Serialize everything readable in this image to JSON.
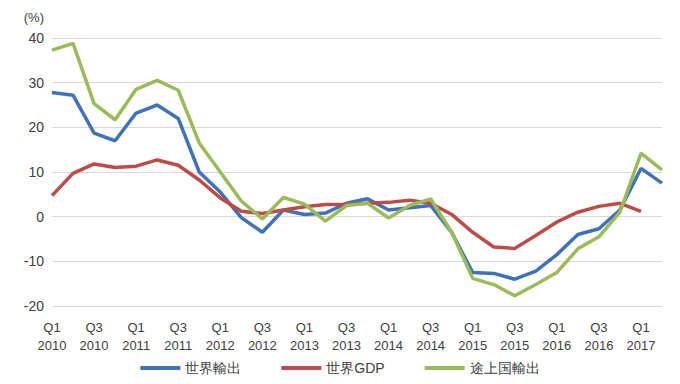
{
  "chart_data": {
    "type": "line",
    "y_label": "(%)",
    "categories": [
      "Q1\n2010",
      null,
      "Q3\n2010",
      null,
      "Q1\n2011",
      null,
      "Q3\n2011",
      null,
      "Q1\n2012",
      null,
      "Q3\n2012",
      null,
      "Q1\n2013",
      null,
      "Q3\n2013",
      null,
      "Q1\n2014",
      null,
      "Q3\n2014",
      null,
      "Q1\n2015",
      null,
      "Q3\n2015",
      null,
      "Q1\n2016",
      null,
      "Q3\n2016",
      null,
      "Q1\n2017",
      null
    ],
    "series": [
      {
        "name": "世界輸出",
        "color": "#3f72b8",
        "values": [
          27.8,
          27.2,
          18.7,
          17.0,
          23.2,
          25.0,
          22.0,
          10.0,
          5.5,
          -0.2,
          -3.5,
          1.5,
          0.5,
          0.8,
          3.0,
          4.0,
          1.5,
          2.0,
          2.5,
          -3.5,
          -12.5,
          -12.7,
          -14.0,
          -12.2,
          -8.5,
          -4.0,
          -2.7,
          1.5,
          10.8,
          7.5
        ]
      },
      {
        "name": "世界GDP",
        "color": "#be4b48",
        "values": [
          4.7,
          9.7,
          11.8,
          11.0,
          11.3,
          12.7,
          11.5,
          8.2,
          4.2,
          1.2,
          0.7,
          1.5,
          2.2,
          2.7,
          2.8,
          3.0,
          3.2,
          3.7,
          3.0,
          0.5,
          -3.5,
          -6.8,
          -7.1,
          -4.2,
          -1.2,
          1.0,
          2.3,
          3.0,
          1.2,
          null
        ]
      },
      {
        "name": "途上国輸出",
        "color": "#9bbb59",
        "values": [
          37.3,
          38.8,
          25.3,
          21.7,
          28.5,
          30.5,
          28.3,
          16.5,
          10.0,
          3.5,
          -0.5,
          4.3,
          2.8,
          -1.0,
          2.5,
          3.0,
          -0.3,
          2.5,
          4.0,
          -3.5,
          -13.8,
          -15.2,
          -17.7,
          -15.2,
          -12.5,
          -7.2,
          -4.5,
          1.0,
          14.2,
          10.5
        ]
      }
    ],
    "ylim": [
      -20,
      40
    ],
    "yticks": [
      -20,
      -10,
      0,
      10,
      20,
      30,
      40
    ],
    "grid": true,
    "legend": "bottom"
  }
}
